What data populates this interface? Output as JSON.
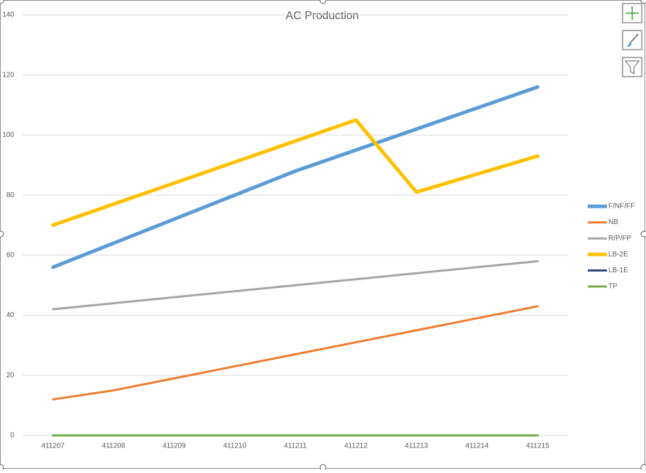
{
  "chart_data": {
    "type": "line",
    "title": "AC Production",
    "categories": [
      "411207",
      "411208",
      "411209",
      "411210",
      "411211",
      "411212",
      "411213",
      "411214",
      "411215"
    ],
    "series": [
      {
        "name": "F/NF/FF",
        "color": "#5b9bd5",
        "values": [
          56,
          64,
          72,
          80,
          88,
          95,
          102,
          109,
          116
        ]
      },
      {
        "name": "NB",
        "color": "#ed7d31",
        "values": [
          12,
          15,
          19,
          23,
          27,
          31,
          35,
          39,
          43
        ]
      },
      {
        "name": "R/P/FP",
        "color": "#a5a5a5",
        "values": [
          42,
          44,
          46,
          48,
          50,
          52,
          54,
          56,
          58
        ]
      },
      {
        "name": "LB-2E",
        "color": "#ffc000",
        "values": [
          70,
          77,
          84,
          91,
          98,
          105,
          81,
          87,
          93
        ]
      },
      {
        "name": "LB-1E",
        "color": "#264478",
        "values": [
          0,
          0,
          0,
          0,
          0,
          0,
          0,
          0,
          0
        ]
      },
      {
        "name": "TP",
        "color": "#70ad47",
        "values": [
          0,
          0,
          0,
          0,
          0,
          0,
          0,
          0,
          0
        ]
      }
    ],
    "ylim": [
      0,
      140
    ],
    "yticks": [
      0,
      20,
      40,
      60,
      80,
      100,
      120,
      140
    ],
    "grid": true,
    "legend": "right"
  }
}
